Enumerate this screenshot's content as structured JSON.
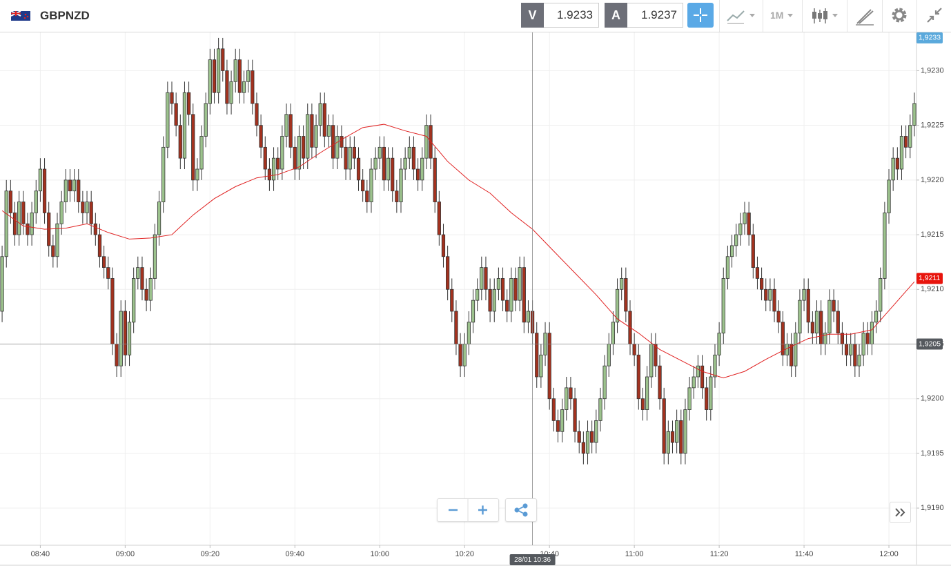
{
  "header": {
    "symbol": "GBPNZD",
    "sell_label": "V",
    "sell": 1.9233,
    "buy_label": "A",
    "buy": 1.9237,
    "timeframe": "1M"
  },
  "chart_data": {
    "type": "candlestick",
    "up_color": "#9cc28d",
    "down_color": "#a3321f",
    "grid": true,
    "categories": [
      null,
      null,
      null,
      null,
      null,
      null,
      null,
      null,
      null,
      "08:40",
      null,
      null,
      null,
      null,
      null,
      null,
      null,
      null,
      null,
      null,
      null,
      null,
      null,
      null,
      null,
      null,
      null,
      null,
      null,
      "09:00",
      null,
      null,
      null,
      null,
      null,
      null,
      null,
      null,
      null,
      null,
      null,
      null,
      null,
      null,
      null,
      null,
      null,
      null,
      null,
      "09:20",
      null,
      null,
      null,
      null,
      null,
      null,
      null,
      null,
      null,
      null,
      null,
      null,
      null,
      null,
      null,
      null,
      null,
      null,
      null,
      "09:40",
      null,
      null,
      null,
      null,
      null,
      null,
      null,
      null,
      null,
      null,
      null,
      null,
      null,
      null,
      null,
      null,
      null,
      null,
      null,
      "10:00",
      null,
      null,
      null,
      null,
      null,
      null,
      null,
      null,
      null,
      null,
      null,
      null,
      null,
      null,
      null,
      null,
      null,
      null,
      null,
      "10:20",
      null,
      null,
      null,
      null,
      null,
      null,
      null,
      null,
      null,
      null,
      null,
      null,
      null,
      null,
      null,
      null,
      null,
      null,
      null,
      "10:40",
      null,
      null,
      null,
      null,
      null,
      null,
      null,
      null,
      null,
      null,
      null,
      null,
      null,
      null,
      null,
      null,
      null,
      null,
      null,
      "11:00",
      null,
      null,
      null,
      null,
      null,
      null,
      null,
      null,
      null,
      null,
      null,
      null,
      null,
      null,
      null,
      null,
      null,
      null,
      null,
      "11:20",
      null,
      null,
      null,
      null,
      null,
      null,
      null,
      null,
      null,
      null,
      null,
      null,
      null,
      null,
      null,
      null,
      null,
      null,
      null,
      "11:40",
      null,
      null,
      null,
      null,
      null,
      null,
      null,
      null,
      null,
      null,
      null,
      null,
      null,
      null,
      null,
      null,
      null,
      null,
      null,
      "12:00",
      null,
      null,
      null,
      null,
      null,
      null
    ],
    "open": [
      1.9208,
      1.9213,
      1.9219,
      1.9217,
      1.9215,
      1.9218,
      1.9216,
      1.9215,
      1.9217,
      1.9219,
      1.9221,
      1.9217,
      1.9214,
      1.9213,
      1.9216,
      1.9218,
      1.922,
      1.9219,
      1.922,
      1.9218,
      1.9217,
      1.9218,
      1.9216,
      1.9215,
      1.9213,
      1.9212,
      1.9211,
      1.9205,
      1.9203,
      1.9208,
      1.9204,
      1.9207,
      1.9211,
      1.9212,
      1.921,
      1.9209,
      1.9211,
      1.9215,
      1.9218,
      1.9223,
      1.9228,
      1.9227,
      1.9225,
      1.9222,
      1.9228,
      1.9226,
      1.922,
      1.9221,
      1.9224,
      1.9227,
      1.9231,
      1.9228,
      1.9232,
      1.923,
      1.9227,
      1.9229,
      1.9231,
      1.9228,
      1.9229,
      1.923,
      1.9227,
      1.9225,
      1.9223,
      1.9221,
      1.922,
      1.9222,
      1.9221,
      1.9224,
      1.9226,
      1.9223,
      1.9221,
      1.9224,
      1.9222,
      1.9226,
      1.9223,
      1.9225,
      1.9227,
      1.9224,
      1.9225,
      1.9222,
      1.9224,
      1.9223,
      1.9221,
      1.9223,
      1.9222,
      1.922,
      1.9219,
      1.9218,
      1.9221,
      1.9222,
      1.9223,
      1.922,
      1.9222,
      1.9219,
      1.9218,
      1.9221,
      1.9222,
      1.9223,
      1.9221,
      1.922,
      1.9222,
      1.9225,
      1.9222,
      1.9218,
      1.9215,
      1.9213,
      1.921,
      1.9208,
      1.9205,
      1.9203,
      1.9205,
      1.9207,
      1.9209,
      1.921,
      1.9212,
      1.921,
      1.9208,
      1.921,
      1.9211,
      1.9209,
      1.9208,
      1.9211,
      1.9209,
      1.9212,
      1.9207,
      1.9208,
      1.9206,
      1.9202,
      1.9204,
      1.9206,
      1.92,
      1.9198,
      1.9197,
      1.9199,
      1.9201,
      1.92,
      1.9197,
      1.9196,
      1.9195,
      1.9197,
      1.9196,
      1.9198,
      1.92,
      1.9203,
      1.9205,
      1.9207,
      1.921,
      1.9211,
      1.9208,
      1.9205,
      1.9204,
      1.92,
      1.9199,
      1.9202,
      1.9205,
      1.9203,
      1.92,
      1.9195,
      1.9197,
      1.9196,
      1.9198,
      1.9195,
      1.9199,
      1.9201,
      1.9202,
      1.9203,
      1.9201,
      1.9199,
      1.9202,
      1.9204,
      1.9206,
      1.9211,
      1.9213,
      1.9214,
      1.9215,
      1.9216,
      1.9217,
      1.9215,
      1.9212,
      1.9211,
      1.921,
      1.9209,
      1.921,
      1.9208,
      1.9207,
      1.9204,
      1.9205,
      1.9203,
      1.9206,
      1.9209,
      1.921,
      1.9207,
      1.9206,
      1.9208,
      1.9205,
      1.9206,
      1.9209,
      1.9208,
      1.9206,
      1.9205,
      1.9204,
      1.9205,
      1.9203,
      1.9204,
      1.9206,
      1.9205,
      1.9207,
      1.9208,
      1.9211,
      1.9217,
      1.922,
      1.9222,
      1.9221,
      1.9224,
      1.9223,
      1.9225
    ],
    "high": [
      1.9214,
      1.922,
      1.922,
      1.9218,
      1.9219,
      1.9219,
      1.9217,
      1.9218,
      1.922,
      1.9222,
      1.9222,
      1.9218,
      1.9215,
      1.9217,
      1.9219,
      1.9221,
      1.9221,
      1.9221,
      1.9221,
      1.9219,
      1.9219,
      1.9219,
      1.9217,
      1.9216,
      1.9214,
      1.9213,
      1.9212,
      1.9206,
      1.9209,
      1.9209,
      1.9208,
      1.9212,
      1.9213,
      1.9213,
      1.9211,
      1.9212,
      1.9216,
      1.9219,
      1.9224,
      1.9229,
      1.9229,
      1.9228,
      1.9226,
      1.9229,
      1.9229,
      1.9227,
      1.9222,
      1.9225,
      1.9228,
      1.9232,
      1.9232,
      1.9233,
      1.9233,
      1.9231,
      1.923,
      1.9232,
      1.9232,
      1.923,
      1.9231,
      1.9231,
      1.9228,
      1.9226,
      1.9224,
      1.9222,
      1.9223,
      1.9223,
      1.9225,
      1.9227,
      1.9227,
      1.9224,
      1.9225,
      1.9225,
      1.9227,
      1.9227,
      1.9226,
      1.9228,
      1.9228,
      1.9226,
      1.9226,
      1.9225,
      1.9225,
      1.9224,
      1.9224,
      1.9224,
      1.9223,
      1.9221,
      1.922,
      1.9222,
      1.9223,
      1.9224,
      1.9224,
      1.9223,
      1.9223,
      1.922,
      1.9222,
      1.9223,
      1.9224,
      1.9224,
      1.9222,
      1.9223,
      1.9226,
      1.9226,
      1.9223,
      1.9219,
      1.9216,
      1.9214,
      1.9211,
      1.9209,
      1.9206,
      1.9206,
      1.9208,
      1.921,
      1.9211,
      1.9213,
      1.9213,
      1.9211,
      1.9211,
      1.9212,
      1.9212,
      1.921,
      1.9212,
      1.9212,
      1.9213,
      1.9213,
      1.9209,
      1.9209,
      1.9207,
      1.9205,
      1.9207,
      1.9207,
      1.9201,
      1.9199,
      1.92,
      1.9202,
      1.9202,
      1.9201,
      1.9198,
      1.9197,
      1.9198,
      1.9198,
      1.9199,
      1.9201,
      1.9204,
      1.9206,
      1.9208,
      1.9211,
      1.9212,
      1.9212,
      1.9209,
      1.9206,
      1.9205,
      1.9201,
      1.9203,
      1.9206,
      1.9206,
      1.9204,
      1.9201,
      1.9198,
      1.9198,
      1.9199,
      1.9199,
      1.92,
      1.9202,
      1.9203,
      1.9204,
      1.9204,
      1.9202,
      1.9203,
      1.9205,
      1.9207,
      1.9212,
      1.9214,
      1.9215,
      1.9216,
      1.9217,
      1.9218,
      1.9218,
      1.9216,
      1.9213,
      1.9212,
      1.9211,
      1.9211,
      1.9211,
      1.9209,
      1.9208,
      1.9206,
      1.9206,
      1.9207,
      1.921,
      1.9211,
      1.9211,
      1.9208,
      1.9209,
      1.9209,
      1.9207,
      1.921,
      1.921,
      1.9209,
      1.9207,
      1.9206,
      1.9206,
      1.9206,
      1.9205,
      1.9207,
      1.9207,
      1.9208,
      1.9209,
      1.9212,
      1.9218,
      1.9221,
      1.9223,
      1.9223,
      1.9225,
      1.9225,
      1.9226,
      1.9228
    ],
    "low": [
      1.9207,
      1.9212,
      1.9216,
      1.9214,
      1.9214,
      1.9215,
      1.9214,
      1.9214,
      1.9216,
      1.9218,
      1.9216,
      1.9213,
      1.9212,
      1.9212,
      1.9215,
      1.9217,
      1.9218,
      1.9218,
      1.9217,
      1.9216,
      1.9216,
      1.9215,
      1.9214,
      1.9212,
      1.9211,
      1.921,
      1.9204,
      1.9202,
      1.9202,
      1.9203,
      1.9203,
      1.9206,
      1.921,
      1.9209,
      1.9208,
      1.9208,
      1.921,
      1.9214,
      1.9217,
      1.9222,
      1.9226,
      1.9224,
      1.9221,
      1.9221,
      1.9225,
      1.9219,
      1.9219,
      1.922,
      1.9223,
      1.9226,
      1.9227,
      1.9227,
      1.9229,
      1.9226,
      1.9226,
      1.9228,
      1.9227,
      1.9227,
      1.9228,
      1.9226,
      1.9224,
      1.9222,
      1.922,
      1.9219,
      1.9219,
      1.922,
      1.922,
      1.9223,
      1.9222,
      1.922,
      1.922,
      1.9221,
      1.9221,
      1.9222,
      1.9222,
      1.9224,
      1.9223,
      1.9223,
      1.9221,
      1.9221,
      1.9222,
      1.922,
      1.922,
      1.9221,
      1.9219,
      1.9218,
      1.9217,
      1.9217,
      1.922,
      1.9221,
      1.9219,
      1.9219,
      1.9218,
      1.9217,
      1.9217,
      1.922,
      1.9221,
      1.922,
      1.9219,
      1.9219,
      1.9221,
      1.9221,
      1.9217,
      1.9214,
      1.9212,
      1.9209,
      1.9207,
      1.9204,
      1.9202,
      1.9202,
      1.9204,
      1.9206,
      1.9208,
      1.9209,
      1.9209,
      1.9207,
      1.9207,
      1.9209,
      1.9208,
      1.9207,
      1.9207,
      1.9208,
      1.9208,
      1.9206,
      1.9206,
      1.9205,
      1.9201,
      1.9201,
      1.9203,
      1.9199,
      1.9197,
      1.9196,
      1.9196,
      1.9198,
      1.9199,
      1.9196,
      1.9195,
      1.9194,
      1.9194,
      1.9195,
      1.9195,
      1.9197,
      1.9199,
      1.9202,
      1.9204,
      1.9206,
      1.9209,
      1.9207,
      1.9204,
      1.9203,
      1.9199,
      1.9198,
      1.9198,
      1.9201,
      1.9202,
      1.9199,
      1.9194,
      1.9194,
      1.9195,
      1.9195,
      1.9194,
      1.9194,
      1.9198,
      1.92,
      1.9201,
      1.92,
      1.9198,
      1.9198,
      1.9201,
      1.9203,
      1.9205,
      1.921,
      1.9212,
      1.9213,
      1.9214,
      1.9215,
      1.9214,
      1.9211,
      1.921,
      1.9209,
      1.9208,
      1.9208,
      1.9207,
      1.9206,
      1.9203,
      1.9203,
      1.9202,
      1.9202,
      1.9205,
      1.9208,
      1.9206,
      1.9205,
      1.9205,
      1.9204,
      1.9204,
      1.9205,
      1.9207,
      1.9205,
      1.9204,
      1.9203,
      1.9203,
      1.9202,
      1.9202,
      1.9203,
      1.9204,
      1.9204,
      1.9206,
      1.9207,
      1.921,
      1.9216,
      1.9219,
      1.922,
      1.922,
      1.9222,
      1.9222,
      1.9224
    ],
    "close": [
      1.9213,
      1.9219,
      1.9217,
      1.9215,
      1.9218,
      1.9216,
      1.9215,
      1.9217,
      1.9219,
      1.9221,
      1.9217,
      1.9214,
      1.9213,
      1.9216,
      1.9218,
      1.922,
      1.9219,
      1.922,
      1.9218,
      1.9217,
      1.9218,
      1.9216,
      1.9215,
      1.9213,
      1.9212,
      1.9211,
      1.9205,
      1.9203,
      1.9208,
      1.9204,
      1.9207,
      1.9211,
      1.9212,
      1.921,
      1.9209,
      1.9211,
      1.9215,
      1.9218,
      1.9223,
      1.9228,
      1.9227,
      1.9225,
      1.9222,
      1.9228,
      1.9226,
      1.922,
      1.9221,
      1.9224,
      1.9227,
      1.9231,
      1.9228,
      1.9232,
      1.923,
      1.9227,
      1.9229,
      1.9231,
      1.9228,
      1.9229,
      1.923,
      1.9227,
      1.9225,
      1.9223,
      1.9221,
      1.922,
      1.9222,
      1.9221,
      1.9224,
      1.9226,
      1.9223,
      1.9221,
      1.9224,
      1.9222,
      1.9226,
      1.9223,
      1.9225,
      1.9227,
      1.9224,
      1.9225,
      1.9222,
      1.9224,
      1.9223,
      1.9221,
      1.9223,
      1.9222,
      1.922,
      1.9219,
      1.9218,
      1.9221,
      1.9222,
      1.9223,
      1.922,
      1.9222,
      1.9219,
      1.9218,
      1.9221,
      1.9222,
      1.9223,
      1.9221,
      1.922,
      1.9222,
      1.9225,
      1.9222,
      1.9218,
      1.9215,
      1.9213,
      1.921,
      1.9208,
      1.9205,
      1.9203,
      1.9205,
      1.9207,
      1.9209,
      1.921,
      1.9212,
      1.921,
      1.9208,
      1.921,
      1.9211,
      1.9209,
      1.9208,
      1.9211,
      1.9209,
      1.9212,
      1.9207,
      1.9208,
      1.9206,
      1.9202,
      1.9204,
      1.9206,
      1.92,
      1.9198,
      1.9197,
      1.9199,
      1.9201,
      1.92,
      1.9197,
      1.9196,
      1.9195,
      1.9197,
      1.9196,
      1.9198,
      1.92,
      1.9203,
      1.9205,
      1.9207,
      1.921,
      1.9211,
      1.9208,
      1.9205,
      1.9204,
      1.92,
      1.9199,
      1.9202,
      1.9205,
      1.9203,
      1.92,
      1.9195,
      1.9197,
      1.9196,
      1.9198,
      1.9195,
      1.9199,
      1.9201,
      1.9202,
      1.9203,
      1.9201,
      1.9199,
      1.9202,
      1.9204,
      1.9206,
      1.9211,
      1.9213,
      1.9214,
      1.9215,
      1.9216,
      1.9217,
      1.9215,
      1.9212,
      1.9211,
      1.921,
      1.9209,
      1.921,
      1.9208,
      1.9207,
      1.9204,
      1.9205,
      1.9203,
      1.9206,
      1.9209,
      1.921,
      1.9207,
      1.9206,
      1.9208,
      1.9205,
      1.9206,
      1.9209,
      1.9208,
      1.9206,
      1.9205,
      1.9204,
      1.9205,
      1.9203,
      1.9204,
      1.9206,
      1.9205,
      1.9207,
      1.9208,
      1.9211,
      1.9217,
      1.922,
      1.9222,
      1.9221,
      1.9224,
      1.9223,
      1.9225,
      1.9227
    ],
    "ma": {
      "color": "#e02020",
      "x": [
        "08:31",
        "08:36",
        "08:41",
        "08:46",
        "08:51",
        "08:56",
        "09:01",
        "09:06",
        "09:11",
        "09:16",
        "09:21",
        "09:26",
        "09:31",
        "09:36",
        "09:41",
        "09:46",
        "09:51",
        "09:56",
        "10:01",
        "10:06",
        "10:11",
        "10:16",
        "10:21",
        "10:26",
        "10:31",
        "10:36",
        "10:41",
        "10:46",
        "10:51",
        "10:56",
        "11:01",
        "11:06",
        "11:11",
        "11:16",
        "11:21",
        "11:26",
        "11:31",
        "11:36",
        "11:41",
        "11:46",
        "11:51",
        "11:56",
        "12:01",
        "12:06"
      ],
      "values": [
        1.92172,
        1.92158,
        1.92155,
        1.92156,
        1.9216,
        1.92152,
        1.92146,
        1.92147,
        1.9215,
        1.92168,
        1.92183,
        1.92194,
        1.92202,
        1.92205,
        1.92212,
        1.92225,
        1.92237,
        1.92248,
        1.92251,
        1.92245,
        1.9224,
        1.92217,
        1.922,
        1.92188,
        1.9217,
        1.92155,
        1.92135,
        1.92115,
        1.92095,
        1.92073,
        1.9206,
        1.92045,
        1.92035,
        1.92025,
        1.92019,
        1.92025,
        1.92036,
        1.92046,
        1.92055,
        1.92059,
        1.92059,
        1.92063,
        1.92085,
        1.92107
      ]
    },
    "ylim": [
      1.91866,
      1.92335
    ],
    "yticks": [
      {
        "value": 1.919,
        "label": "1,9190"
      },
      {
        "value": 1.9195,
        "label": "1,9195"
      },
      {
        "value": 1.92,
        "label": "1,9200"
      },
      {
        "value": 1.9205,
        "label": "1,9205"
      },
      {
        "value": 1.921,
        "label": "1,9210"
      },
      {
        "value": 1.9215,
        "label": "1,9215"
      },
      {
        "value": 1.922,
        "label": "1,9220"
      },
      {
        "value": 1.9225,
        "label": "1,9225"
      },
      {
        "value": 1.923,
        "label": "1,9230"
      }
    ],
    "price_labels": [
      {
        "value": 1.9233,
        "label": "1,9233",
        "color": "#5aa9dc"
      },
      {
        "value": 1.9211,
        "label": "1,9211",
        "color": "#e8140c"
      }
    ],
    "crosshair": {
      "time_label": "28/01 10:36",
      "price": {
        "value": 1.9205,
        "label": "1,9205"
      }
    }
  }
}
